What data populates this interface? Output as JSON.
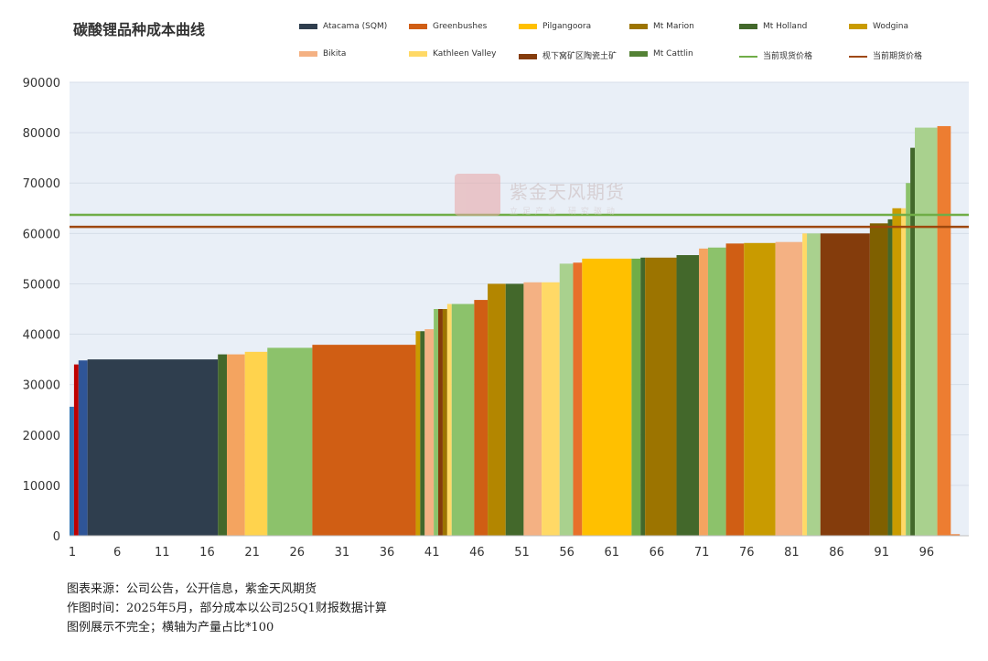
{
  "title": "碳酸锂品种成本曲线",
  "legend": [
    {
      "label": "Atacama (SQM)",
      "color": "#2F3E4E",
      "kind": "bar"
    },
    {
      "label": "Greenbushes",
      "color": "#D05E14",
      "kind": "bar"
    },
    {
      "label": "Pilgangoora",
      "color": "#FFC000",
      "kind": "bar"
    },
    {
      "label": "Mt Marion",
      "color": "#9C7400",
      "kind": "bar"
    },
    {
      "label": "Mt Holland",
      "color": "#43682B",
      "kind": "bar"
    },
    {
      "label": "Wodgina",
      "color": "#C99B00",
      "kind": "bar"
    },
    {
      "label": "Bikita",
      "color": "#F4B183",
      "kind": "bar"
    },
    {
      "label": "Kathleen Valley",
      "color": "#FFD966",
      "kind": "bar"
    },
    {
      "label": "枧下窝矿区陶瓷土矿",
      "color": "#843C0C",
      "kind": "bar"
    },
    {
      "label": "Mt Cattlin",
      "color": "#548235",
      "kind": "bar"
    },
    {
      "label": "当前现货价格",
      "color": "#70AD47",
      "kind": "line"
    },
    {
      "label": "当前期货价格",
      "color": "#9E480E",
      "kind": "line"
    }
  ],
  "watermark": {
    "name": "紫金天风期货",
    "sub": "立足产业  研究驱动"
  },
  "notes": [
    "图表来源：公司公告，公开信息，紫金天风期货",
    "作图时间：2025年5月，部分成本以公司25Q1财报数据计算",
    "图例展示不完全；横轴为产量占比*100"
  ],
  "chart_data": {
    "type": "bar",
    "subtype": "cost-curve (variable-width step bars)",
    "x_ticks": [
      1,
      6,
      11,
      16,
      21,
      26,
      31,
      36,
      41,
      46,
      51,
      56,
      61,
      66,
      71,
      76,
      81,
      86,
      91,
      96
    ],
    "xlim": [
      0,
      100
    ],
    "ylim": [
      0,
      90000
    ],
    "y_ticks": [
      0,
      10000,
      20000,
      30000,
      40000,
      50000,
      60000,
      70000,
      80000,
      90000
    ],
    "grid": "horizontal",
    "background": "#E9EFF7",
    "bars": [
      {
        "start": 0.0,
        "end": 0.5,
        "cost": 25600,
        "color": "#2E75B6"
      },
      {
        "start": 0.5,
        "end": 1.0,
        "cost": 34000,
        "color": "#C00000"
      },
      {
        "start": 1.0,
        "end": 2.0,
        "cost": 34800,
        "color": "#2F5597"
      },
      {
        "start": 2.0,
        "end": 16.5,
        "cost": 35000,
        "color": "#2F3E4E"
      },
      {
        "start": 16.5,
        "end": 17.5,
        "cost": 36000,
        "color": "#43682B"
      },
      {
        "start": 17.5,
        "end": 19.5,
        "cost": 36000,
        "color": "#F4A460"
      },
      {
        "start": 19.5,
        "end": 22.0,
        "cost": 36500,
        "color": "#FFD34D"
      },
      {
        "start": 22.0,
        "end": 27.0,
        "cost": 37300,
        "color": "#8CC26B"
      },
      {
        "start": 27.0,
        "end": 38.5,
        "cost": 37900,
        "color": "#D05E14"
      },
      {
        "start": 38.5,
        "end": 39.0,
        "cost": 40600,
        "color": "#C99B00"
      },
      {
        "start": 39.0,
        "end": 39.5,
        "cost": 40600,
        "color": "#43682B"
      },
      {
        "start": 39.5,
        "end": 40.5,
        "cost": 41000,
        "color": "#F4B183"
      },
      {
        "start": 40.5,
        "end": 41.0,
        "cost": 45000,
        "color": "#8CC26B"
      },
      {
        "start": 41.0,
        "end": 41.5,
        "cost": 45000,
        "color": "#843C0C"
      },
      {
        "start": 41.5,
        "end": 42.0,
        "cost": 45000,
        "color": "#9C7400"
      },
      {
        "start": 42.0,
        "end": 42.5,
        "cost": 46000,
        "color": "#FFD966"
      },
      {
        "start": 42.5,
        "end": 45.0,
        "cost": 46000,
        "color": "#8CC26B"
      },
      {
        "start": 45.0,
        "end": 46.5,
        "cost": 46800,
        "color": "#D05E14"
      },
      {
        "start": 46.5,
        "end": 48.5,
        "cost": 50000,
        "color": "#B38600"
      },
      {
        "start": 48.5,
        "end": 50.5,
        "cost": 50000,
        "color": "#43682B"
      },
      {
        "start": 50.5,
        "end": 52.5,
        "cost": 50300,
        "color": "#F4B183"
      },
      {
        "start": 52.5,
        "end": 54.5,
        "cost": 50300,
        "color": "#FFD966"
      },
      {
        "start": 54.5,
        "end": 56.0,
        "cost": 54000,
        "color": "#A9D18E"
      },
      {
        "start": 56.0,
        "end": 57.0,
        "cost": 54200,
        "color": "#E8702A"
      },
      {
        "start": 57.0,
        "end": 62.5,
        "cost": 55000,
        "color": "#FFC000"
      },
      {
        "start": 62.5,
        "end": 63.5,
        "cost": 55000,
        "color": "#70AD47"
      },
      {
        "start": 63.5,
        "end": 64.0,
        "cost": 55200,
        "color": "#43682B"
      },
      {
        "start": 64.0,
        "end": 67.5,
        "cost": 55200,
        "color": "#9C7400"
      },
      {
        "start": 67.5,
        "end": 70.0,
        "cost": 55700,
        "color": "#43682B"
      },
      {
        "start": 70.0,
        "end": 71.0,
        "cost": 57000,
        "color": "#F4A460"
      },
      {
        "start": 71.0,
        "end": 73.0,
        "cost": 57200,
        "color": "#8CC26B"
      },
      {
        "start": 73.0,
        "end": 75.0,
        "cost": 58000,
        "color": "#D05E14"
      },
      {
        "start": 75.0,
        "end": 78.5,
        "cost": 58100,
        "color": "#C99B00"
      },
      {
        "start": 78.5,
        "end": 81.5,
        "cost": 58300,
        "color": "#F4B183"
      },
      {
        "start": 81.5,
        "end": 82.0,
        "cost": 60000,
        "color": "#FFD966"
      },
      {
        "start": 82.0,
        "end": 83.5,
        "cost": 60000,
        "color": "#A9D18E"
      },
      {
        "start": 83.5,
        "end": 89.0,
        "cost": 60000,
        "color": "#843C0C"
      },
      {
        "start": 89.0,
        "end": 91.0,
        "cost": 62000,
        "color": "#7F6000"
      },
      {
        "start": 91.0,
        "end": 91.5,
        "cost": 62800,
        "color": "#43682B"
      },
      {
        "start": 91.5,
        "end": 92.5,
        "cost": 65000,
        "color": "#C99B00"
      },
      {
        "start": 92.5,
        "end": 93.0,
        "cost": 65000,
        "color": "#FFD966"
      },
      {
        "start": 93.0,
        "end": 93.5,
        "cost": 70000,
        "color": "#8CC26B"
      },
      {
        "start": 93.5,
        "end": 94.0,
        "cost": 77000,
        "color": "#43682B"
      },
      {
        "start": 94.0,
        "end": 96.5,
        "cost": 81000,
        "color": "#A9D18E"
      },
      {
        "start": 96.5,
        "end": 98.0,
        "cost": 81300,
        "color": "#ED7D31"
      },
      {
        "start": 98.0,
        "end": 99.0,
        "cost": 300,
        "color": "#ED7D31"
      }
    ],
    "reference_lines": [
      {
        "name": "当前现货价格",
        "value": 63700,
        "color": "#70AD47"
      },
      {
        "name": "当前期货价格",
        "value": 61300,
        "color": "#9E480E"
      }
    ]
  }
}
